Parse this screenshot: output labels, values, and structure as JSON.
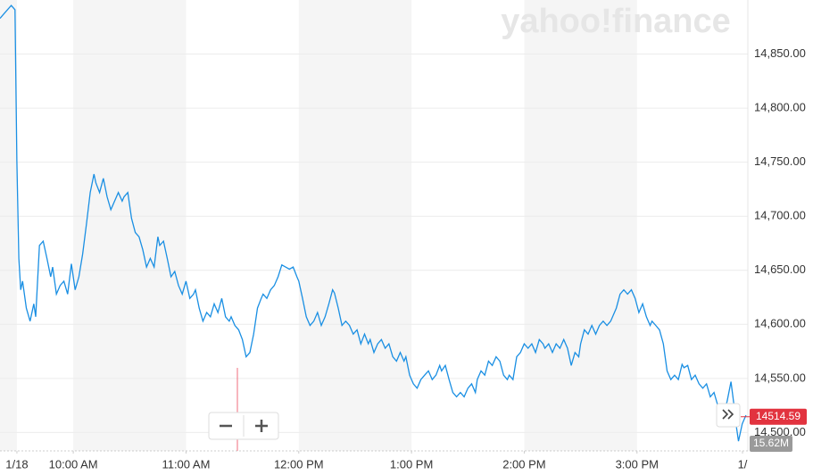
{
  "chart_data": {
    "type": "line",
    "watermark": "yahoo!finance",
    "xlim": [
      561,
      959
    ],
    "ylim": [
      14483,
      14900
    ],
    "xticks": [
      {
        "value": 570,
        "label": "1/18"
      },
      {
        "value": 600,
        "label": "10:00 AM"
      },
      {
        "value": 660,
        "label": "11:00 AM"
      },
      {
        "value": 720,
        "label": "12:00 PM"
      },
      {
        "value": 780,
        "label": "1:00 PM"
      },
      {
        "value": 840,
        "label": "2:00 PM"
      },
      {
        "value": 900,
        "label": "3:00 PM"
      },
      {
        "value": 959,
        "label": "1/"
      }
    ],
    "yticks": [
      {
        "value": 14500,
        "label": "14,500.00"
      },
      {
        "value": 14550,
        "label": "14,550.00"
      },
      {
        "value": 14600,
        "label": "14,600.00"
      },
      {
        "value": 14650,
        "label": "14,650.00"
      },
      {
        "value": 14700,
        "label": "14,700.00"
      },
      {
        "value": 14750,
        "label": "14,750.00"
      },
      {
        "value": 14800,
        "label": "14,800.00"
      },
      {
        "value": 14850,
        "label": "14,850.00"
      }
    ],
    "grid": true,
    "last_price": 14514.59,
    "volume": "15.62M",
    "series": [
      {
        "color": "#1a8fe3",
        "x": [
          561,
          563,
          567,
          569,
          570,
          571,
          572,
          573,
          575,
          577,
          579,
          580,
          582,
          584,
          586,
          588,
          589,
          591,
          593,
          595,
          597,
          599,
          601,
          603,
          605,
          607,
          609,
          611,
          612,
          614,
          616,
          618,
          620,
          622,
          624,
          626,
          627,
          629,
          631,
          633,
          635,
          637,
          639,
          641,
          643,
          645,
          646,
          648,
          650,
          652,
          654,
          656,
          658,
          660,
          662,
          664,
          665,
          667,
          669,
          671,
          673,
          675,
          677,
          679,
          681,
          683,
          684,
          686,
          688,
          690,
          692,
          694,
          696,
          698,
          700,
          701,
          703,
          705,
          707,
          709,
          711,
          713,
          715,
          717,
          719,
          720,
          722,
          724,
          726,
          728,
          730,
          732,
          734,
          736,
          738,
          739,
          741,
          743,
          745,
          747,
          749,
          751,
          753,
          755,
          757,
          758,
          760,
          762,
          764,
          766,
          768,
          770,
          772,
          774,
          776,
          777,
          779,
          781,
          783,
          785,
          787,
          789,
          791,
          793,
          795,
          796,
          798,
          800,
          802,
          804,
          806,
          808,
          810,
          812,
          814,
          815,
          817,
          819,
          821,
          823,
          825,
          827,
          829,
          831,
          832,
          834,
          836,
          838,
          840,
          842,
          844,
          846,
          848,
          850,
          851,
          853,
          855,
          857,
          859,
          861,
          863,
          865,
          867,
          869,
          870,
          872,
          874,
          876,
          878,
          880,
          882,
          884,
          886,
          888,
          889,
          891,
          893,
          895,
          897,
          899,
          901,
          903,
          905,
          907,
          908,
          910,
          912,
          914,
          916,
          918,
          920,
          922,
          924,
          925,
          927,
          929,
          931,
          933,
          935,
          937,
          939,
          941,
          943,
          944,
          946,
          948,
          950,
          952,
          953,
          954,
          956,
          958
        ],
        "values": [
          14883,
          14887,
          14895,
          14891,
          14751,
          14661,
          14632,
          14640,
          14615,
          14603,
          14619,
          14607,
          14673,
          14677,
          14661,
          14644,
          14653,
          14628,
          14636,
          14640,
          14628,
          14656,
          14632,
          14644,
          14665,
          14693,
          14722,
          14739,
          14731,
          14722,
          14735,
          14718,
          14706,
          14714,
          14722,
          14714,
          14718,
          14722,
          14698,
          14685,
          14681,
          14669,
          14653,
          14661,
          14653,
          14681,
          14673,
          14677,
          14661,
          14644,
          14649,
          14636,
          14628,
          14640,
          14624,
          14628,
          14632,
          14615,
          14603,
          14611,
          14607,
          14619,
          14611,
          14624,
          14607,
          14603,
          14607,
          14599,
          14595,
          14586,
          14570,
          14574,
          14591,
          14615,
          14624,
          14628,
          14624,
          14632,
          14636,
          14644,
          14655,
          14653,
          14651,
          14653,
          14644,
          14640,
          14624,
          14607,
          14599,
          14603,
          14611,
          14599,
          14607,
          14619,
          14632,
          14629,
          14615,
          14599,
          14603,
          14599,
          14591,
          14595,
          14582,
          14591,
          14582,
          14586,
          14574,
          14582,
          14586,
          14578,
          14582,
          14570,
          14566,
          14574,
          14566,
          14570,
          14553,
          14545,
          14541,
          14549,
          14553,
          14557,
          14549,
          14553,
          14562,
          14557,
          14562,
          14549,
          14537,
          14533,
          14537,
          14533,
          14541,
          14545,
          14537,
          14549,
          14557,
          14553,
          14566,
          14562,
          14570,
          14566,
          14553,
          14549,
          14553,
          14549,
          14570,
          14574,
          14582,
          14578,
          14582,
          14574,
          14586,
          14582,
          14578,
          14582,
          14574,
          14582,
          14578,
          14586,
          14578,
          14562,
          14574,
          14570,
          14582,
          14595,
          14591,
          14599,
          14591,
          14599,
          14603,
          14599,
          14603,
          14611,
          14615,
          14628,
          14632,
          14628,
          14632,
          14624,
          14611,
          14619,
          14607,
          14599,
          14603,
          14599,
          14595,
          14582,
          14557,
          14549,
          14553,
          14549,
          14563,
          14560,
          14562,
          14549,
          14553,
          14545,
          14541,
          14545,
          14533,
          14537,
          14525,
          14512,
          14516,
          14529,
          14547,
          14520,
          14504,
          14492,
          14508,
          14516
        ]
      }
    ]
  }
}
